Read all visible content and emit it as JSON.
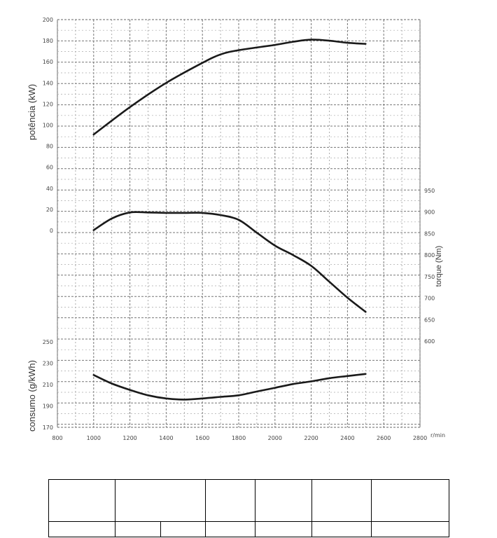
{
  "chart_data": {
    "type": "line",
    "x": {
      "ticks": [
        800,
        1000,
        1200,
        1400,
        1600,
        1800,
        2000,
        2200,
        2400,
        2600,
        2800
      ],
      "tick_labels": [
        "800",
        "1000",
        "1200",
        "1400",
        "1600",
        "1800",
        "2000",
        "2200",
        "2400",
        "2600",
        "2800"
      ],
      "unit": "r/min",
      "range": [
        800,
        2800
      ]
    },
    "panels": [
      {
        "ylabel": "potência (kW)",
        "ylim": [
          0,
          200
        ],
        "ticks": [
          0,
          20,
          40,
          60,
          80,
          100,
          120,
          140,
          160,
          180,
          200
        ],
        "tick_labels": [
          "0",
          "20",
          "40",
          "60",
          "80",
          "100",
          "120",
          "140",
          "160",
          "180",
          "200"
        ],
        "axis_side": "left",
        "series": [
          {
            "x": [
              1000,
              1200,
              1400,
              1600,
              1700,
              1800,
              2000,
              2100,
              2200,
              2300,
              2400,
              2500
            ],
            "values": [
              91,
              117,
              140,
              159,
              167,
              171,
              176,
              179,
              181,
              180,
              178,
              177
            ]
          }
        ]
      },
      {
        "ylabel": "torque (Nm)",
        "ylim": [
          600,
          950
        ],
        "ticks": [
          600,
          650,
          700,
          750,
          800,
          850,
          900,
          950
        ],
        "tick_labels": [
          "600",
          "650",
          "700",
          "750",
          "800",
          "850",
          "900",
          "950"
        ],
        "axis_side": "right",
        "series": [
          {
            "x": [
              1000,
              1100,
              1200,
              1300,
              1400,
              1500,
              1600,
              1700,
              1800,
              1900,
              2000,
              2100,
              2200,
              2300,
              2400,
              2500
            ],
            "values": [
              858,
              885,
              899,
              899,
              898,
              898,
              898,
              893,
              882,
              852,
              822,
              800,
              775,
              738,
              701,
              668
            ]
          }
        ]
      },
      {
        "ylabel": "consumo (g/kWh)",
        "ylim": [
          170,
          250
        ],
        "ticks": [
          170,
          190,
          210,
          230,
          250
        ],
        "tick_labels": [
          "170",
          "190",
          "210",
          "230",
          "250"
        ],
        "axis_side": "left",
        "series": [
          {
            "x": [
              1000,
              1100,
              1200,
              1300,
              1400,
              1500,
              1600,
              1700,
              1800,
              1900,
              2000,
              2100,
              2200,
              2300,
              2400,
              2500
            ],
            "values": [
              219,
              211,
              205,
              200,
              197,
              196,
              197,
              198.5,
              200,
              203.5,
              207,
              210.5,
              213,
              216,
              218,
              220
            ]
          }
        ]
      }
    ],
    "grid": true
  },
  "table": {
    "rows": [
      [
        "",
        "",
        "",
        "",
        "",
        ""
      ],
      [
        "",
        "",
        "",
        "",
        "",
        "",
        ""
      ]
    ]
  }
}
